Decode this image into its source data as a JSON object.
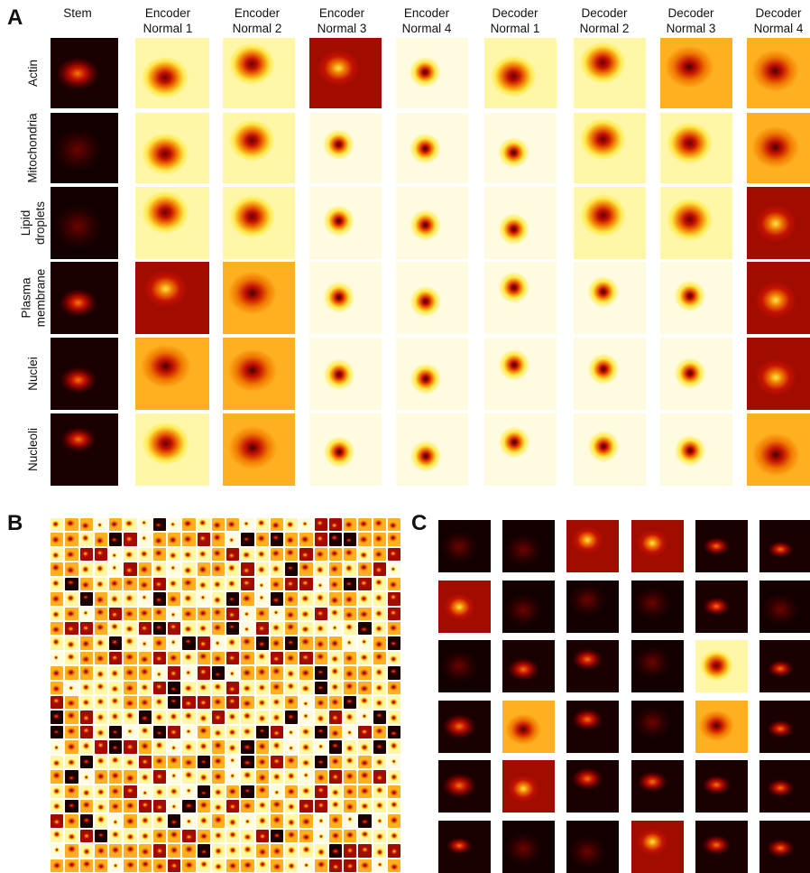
{
  "panels": {
    "a": "A",
    "b": "B",
    "c": "C"
  },
  "columns": [
    "Stem",
    "Encoder\nNormal 1",
    "Encoder\nNormal 2",
    "Encoder\nNormal 3",
    "Encoder\nNormal 4",
    "Decoder\nNormal 1",
    "Decoder\nNormal 2",
    "Decoder\nNormal 3",
    "Decoder\nNormal 4"
  ],
  "rows": [
    "Actin",
    "Mitochondria",
    "Lipid\ndroplets",
    "Plasma\nmembrane",
    "Nuclei",
    "Nucleoli"
  ],
  "colormap": "hot",
  "colors": {
    "dark": "#1a0000",
    "red": "#c41200",
    "orange": "#f07a00",
    "yellow": "#ffe94a",
    "pale": "#fffbe0"
  },
  "panel_b": {
    "grid_rows": 24,
    "grid_cols": 24
  },
  "panel_c": {
    "grid_rows": 6,
    "grid_cols": 6
  }
}
